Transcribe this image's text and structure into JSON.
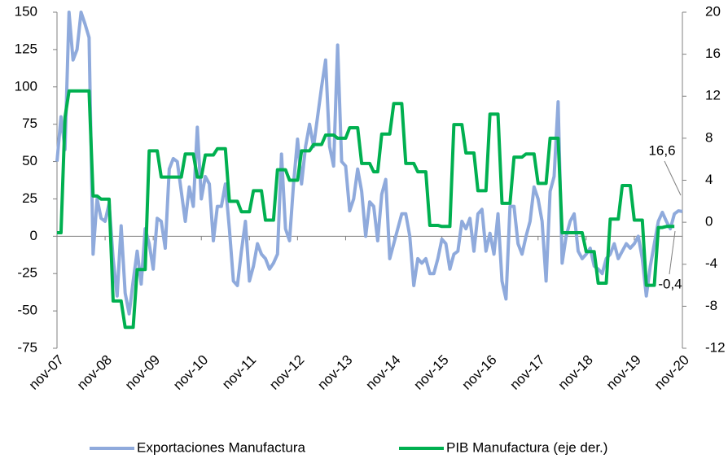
{
  "chart_data": {
    "type": "line",
    "categories": [
      "nov-07",
      null,
      null,
      null,
      null,
      null,
      null,
      null,
      null,
      null,
      null,
      null,
      "nov-08",
      null,
      null,
      null,
      null,
      null,
      null,
      null,
      null,
      null,
      null,
      null,
      "nov-09",
      null,
      null,
      null,
      null,
      null,
      null,
      null,
      null,
      null,
      null,
      null,
      "nov-10",
      null,
      null,
      null,
      null,
      null,
      null,
      null,
      null,
      null,
      null,
      null,
      "nov-11",
      null,
      null,
      null,
      null,
      null,
      null,
      null,
      null,
      null,
      null,
      null,
      "nov-12",
      null,
      null,
      null,
      null,
      null,
      null,
      null,
      null,
      null,
      null,
      null,
      "nov-13",
      null,
      null,
      null,
      null,
      null,
      null,
      null,
      null,
      null,
      null,
      null,
      "nov-14",
      null,
      null,
      null,
      null,
      null,
      null,
      null,
      null,
      null,
      null,
      null,
      "nov-15",
      null,
      null,
      null,
      null,
      null,
      null,
      null,
      null,
      null,
      null,
      null,
      "nov-16",
      null,
      null,
      null,
      null,
      null,
      null,
      null,
      null,
      null,
      null,
      null,
      "nov-17",
      null,
      null,
      null,
      null,
      null,
      null,
      null,
      null,
      null,
      null,
      null,
      "nov-18",
      null,
      null,
      null,
      null,
      null,
      null,
      null,
      null,
      null,
      null,
      null,
      "nov-19",
      null,
      null,
      null,
      null,
      null,
      null,
      null,
      null,
      null,
      null,
      null,
      "nov-20"
    ],
    "series": [
      {
        "name": "Exportaciones Manufactura",
        "color": "#8faadc",
        "values": [
          50,
          80,
          58,
          150,
          118,
          125,
          150,
          142,
          133,
          -12,
          25,
          12,
          10,
          22,
          -15,
          -40,
          7,
          -38,
          -52,
          -30,
          -10,
          -32,
          5,
          -5,
          -22,
          12,
          10,
          -8,
          45,
          52,
          50,
          30,
          10,
          33,
          20,
          73,
          25,
          40,
          35,
          -3,
          20,
          20,
          35,
          5,
          -30,
          -33,
          -10,
          10,
          -30,
          -20,
          -5,
          -12,
          -15,
          -22,
          -18,
          -12,
          55,
          5,
          -3,
          35,
          65,
          35,
          60,
          75,
          60,
          80,
          100,
          118,
          60,
          47,
          128,
          50,
          47,
          17,
          25,
          45,
          30,
          0,
          23,
          20,
          -3,
          28,
          38,
          -15,
          -5,
          5,
          15,
          15,
          0,
          -33,
          -15,
          -18,
          -15,
          -25,
          -25,
          -15,
          -2,
          -5,
          -22,
          -12,
          -10,
          10,
          5,
          12,
          -10,
          15,
          18,
          -10,
          2,
          -12,
          15,
          -30,
          -42,
          20,
          20,
          -5,
          -12,
          0,
          10,
          33,
          25,
          10,
          -30,
          30,
          40,
          90,
          -18,
          0,
          10,
          15,
          -10,
          -15,
          -12,
          -8,
          -20,
          -22,
          -25,
          -15,
          -12,
          -5,
          -15,
          -10,
          -5,
          -8,
          -5,
          0,
          -15,
          -40,
          -20,
          -5,
          10,
          16,
          10,
          5,
          15,
          17,
          16.6
        ]
      },
      {
        "name": "PIB Manufactura (eje der.)",
        "color": "#00b050",
        "axis": "y2",
        "values": [
          -1,
          -1,
          10,
          12.5,
          12.5,
          12.5,
          12.5,
          12.5,
          12.5,
          2.5,
          2.5,
          2.2,
          2.2,
          2.2,
          -7.5,
          -7.5,
          -7.5,
          -10,
          -10,
          -10,
          -4.5,
          -4.5,
          -4.5,
          6.8,
          6.8,
          6.8,
          4.3,
          4.3,
          4.3,
          4.3,
          4.3,
          4.3,
          6.5,
          6.5,
          6.5,
          4.3,
          4.3,
          6.4,
          6.4,
          6.4,
          7,
          7,
          7,
          2,
          2,
          2,
          1,
          1,
          1,
          3,
          3,
          3,
          0.2,
          0.2,
          0.2,
          5,
          5,
          5,
          4,
          4,
          4,
          6.8,
          6.8,
          6.8,
          7.4,
          7.4,
          7.4,
          8.3,
          8.3,
          8.3,
          8,
          8,
          8,
          9,
          9,
          9,
          5.6,
          5.6,
          5.6,
          4.8,
          4.8,
          8.4,
          8.4,
          8.4,
          11.3,
          11.3,
          11.3,
          5.6,
          5.6,
          5.6,
          4.8,
          4.8,
          4.8,
          -0.3,
          -0.3,
          -0.3,
          -0.4,
          -0.4,
          -0.4,
          9.3,
          9.3,
          9.3,
          6.6,
          6.6,
          6.6,
          3,
          3,
          3,
          10.3,
          10.3,
          10.3,
          1.8,
          1.8,
          1.8,
          6.2,
          6.2,
          6.2,
          6.5,
          6.5,
          6.5,
          3.7,
          3.7,
          3.7,
          8,
          8,
          8,
          -1,
          -1,
          -1,
          -1,
          -1,
          -1,
          -2.8,
          -2.8,
          -2.8,
          -5.8,
          -5.8,
          -5.8,
          0.3,
          0.3,
          0.3,
          3.5,
          3.5,
          3.5,
          0.2,
          0.2,
          0.2,
          -6,
          -6,
          -6,
          -0.5,
          -0.5,
          -0.4,
          -0.4,
          -0.4,
          null,
          null
        ]
      }
    ],
    "ylim": [
      -75,
      150
    ],
    "yticks": [
      -75,
      -50,
      -25,
      0,
      25,
      50,
      75,
      100,
      125,
      150
    ],
    "y2lim": [
      -12,
      20
    ],
    "y2ticks": [
      -12,
      -8,
      -4,
      0,
      4,
      8,
      12,
      16,
      20
    ],
    "annotations": [
      "16,6",
      "-0,4"
    ],
    "legend": "bottom"
  }
}
